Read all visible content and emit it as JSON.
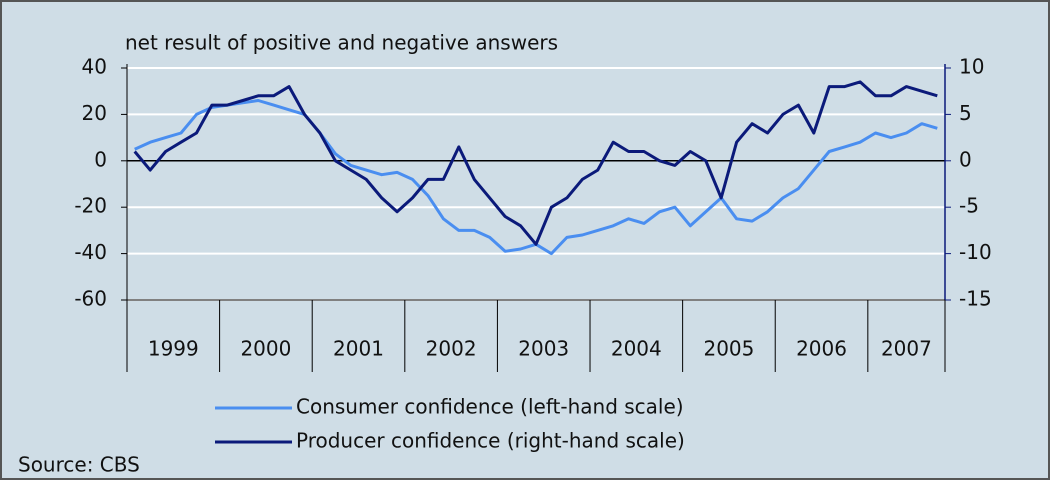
{
  "chart_data": {
    "type": "line",
    "title": "net result of positive and negative answers",
    "source": "Source: CBS",
    "categories": [
      "1999",
      null,
      null,
      null,
      null,
      null,
      "2000",
      null,
      null,
      null,
      null,
      null,
      "2001",
      null,
      null,
      null,
      null,
      null,
      "2002",
      null,
      null,
      null,
      null,
      null,
      "2003",
      null,
      null,
      null,
      null,
      null,
      "2004",
      null,
      null,
      null,
      null,
      null,
      "2005",
      null,
      null,
      null,
      null,
      null,
      "2006",
      null,
      null,
      null,
      null,
      null,
      "2007",
      null,
      null,
      null,
      null
    ],
    "series": [
      {
        "name": "Consumer confidence (left-hand scale)",
        "color": "#4a8ef0",
        "values": [
          5,
          8,
          10,
          12,
          20,
          23,
          24,
          25,
          26,
          24,
          22,
          20,
          12,
          3,
          -2,
          -4,
          -6,
          -5,
          -8,
          -15,
          -25,
          -30,
          -30,
          -33,
          -39,
          -38,
          -36,
          -40,
          -33,
          -32,
          -30,
          -28,
          -25,
          -27,
          -22,
          -20,
          -28,
          -22,
          -16,
          -25,
          -26,
          -22,
          -16,
          -12,
          -4,
          4,
          6,
          8,
          12,
          10,
          12,
          16,
          14
        ]
      },
      {
        "name": "Producer confidence (right-hand scale)",
        "color": "#0b1a7a",
        "axis": "y2",
        "values": [
          1,
          -1,
          1,
          2,
          3,
          6,
          6,
          6.5,
          7,
          7,
          8,
          5,
          3,
          0,
          -1,
          -2,
          -4,
          -5.5,
          -4,
          -2,
          -2,
          1.5,
          -2,
          -4,
          -6,
          -7,
          -9,
          -5,
          -4,
          -2,
          -1,
          2,
          1,
          1,
          0,
          -0.5,
          1,
          0,
          -4,
          2,
          4,
          3,
          5,
          6,
          3,
          8,
          8,
          8.5,
          7,
          7,
          8,
          7.5,
          7
        ]
      }
    ],
    "ylim": [
      -60,
      40
    ],
    "yticks": [
      40,
      20,
      0,
      -20,
      -40,
      -60
    ],
    "y2lim": [
      -15,
      10
    ],
    "y2ticks": [
      10,
      5,
      0,
      -5,
      -10,
      -15
    ],
    "grid": true
  }
}
